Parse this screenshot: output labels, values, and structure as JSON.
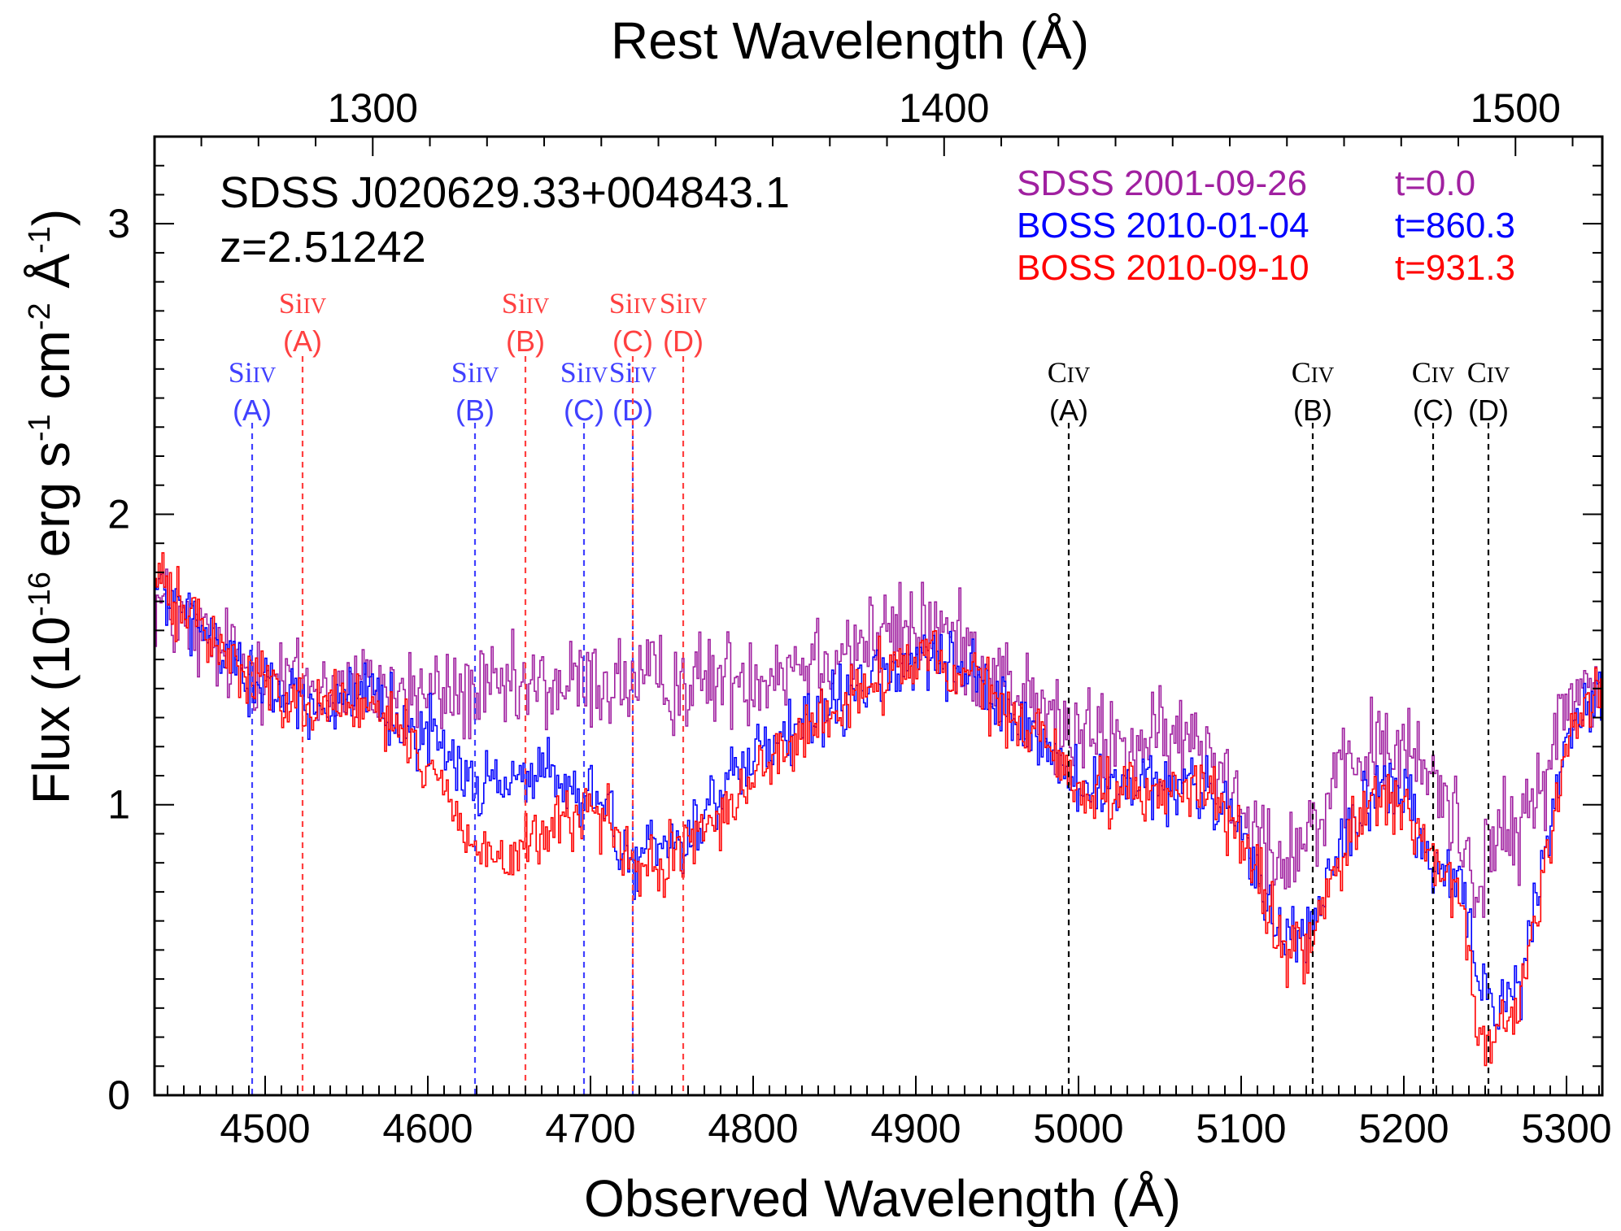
{
  "chart_data": {
    "type": "line",
    "object_name": "SDSS J020629.33+004843.1",
    "redshift_label": "z=2.51242",
    "redshift": 2.51242,
    "xlabel": "Observed Wavelength (Å)",
    "top_xlabel": "Rest Wavelength (Å)",
    "xlim": [
      4432,
      5322
    ],
    "ylim": [
      0,
      3.3
    ],
    "x_ticks": [
      4500,
      4600,
      4700,
      4800,
      4900,
      5000,
      5100,
      5200,
      5300
    ],
    "x_tick_labels": [
      "4500",
      "4600",
      "4700",
      "4800",
      "4900",
      "5000",
      "5100",
      "5200",
      "5300"
    ],
    "y_ticks": [
      0,
      1,
      2,
      3
    ],
    "y_tick_labels": [
      "0",
      "1",
      "2",
      "3"
    ],
    "top_ticks": [
      1300,
      1400,
      1500
    ],
    "top_tick_labels": [
      "1300",
      "1400",
      "1500"
    ],
    "ylabel": {
      "prefix": "Flux (10",
      "exp": "-16",
      "unit1": " erg s",
      "exp1": "-1",
      "unit2": " cm",
      "exp2": "-2",
      "unit3": " Å",
      "exp3": "-1",
      "suffix": ")"
    },
    "legend_placement": "top-right",
    "grid": false,
    "series": [
      {
        "name": "SDSS 2001-09-26",
        "time_label": "t=0.0",
        "color": "#a020a0",
        "noise": 0.12,
        "continuum": [
          [
            4432,
            1.7
          ],
          [
            4470,
            1.52
          ],
          [
            4520,
            1.42
          ],
          [
            4560,
            1.4
          ],
          [
            4600,
            1.38
          ],
          [
            4640,
            1.38
          ],
          [
            4700,
            1.42
          ],
          [
            4760,
            1.42
          ],
          [
            4800,
            1.45
          ],
          [
            4860,
            1.55
          ],
          [
            4910,
            1.62
          ],
          [
            4950,
            1.45
          ],
          [
            4990,
            1.25
          ],
          [
            5030,
            1.2
          ],
          [
            5060,
            1.22
          ],
          [
            5080,
            1.2
          ],
          [
            5100,
            1.02
          ],
          [
            5120,
            0.82
          ],
          [
            5140,
            0.9
          ],
          [
            5160,
            1.05
          ],
          [
            5180,
            1.2
          ],
          [
            5200,
            1.18
          ],
          [
            5220,
            1.08
          ],
          [
            5235,
            0.9
          ],
          [
            5245,
            0.72
          ],
          [
            5255,
            0.9
          ],
          [
            5270,
            0.88
          ],
          [
            5285,
            1.1
          ],
          [
            5300,
            1.35
          ],
          [
            5322,
            1.45
          ]
        ]
      },
      {
        "name": "BOSS 2010-01-04",
        "time_label": "t=860.3",
        "color": "#0000ff",
        "noise": 0.08,
        "continuum": [
          [
            4432,
            1.75
          ],
          [
            4470,
            1.55
          ],
          [
            4500,
            1.4
          ],
          [
            4530,
            1.35
          ],
          [
            4560,
            1.35
          ],
          [
            4590,
            1.28
          ],
          [
            4610,
            1.2
          ],
          [
            4630,
            1.05
          ],
          [
            4650,
            1.1
          ],
          [
            4670,
            1.12
          ],
          [
            4690,
            1.02
          ],
          [
            4700,
            1.02
          ],
          [
            4710,
            1.0
          ],
          [
            4720,
            0.8
          ],
          [
            4740,
            0.85
          ],
          [
            4760,
            0.9
          ],
          [
            4780,
            1.05
          ],
          [
            4800,
            1.15
          ],
          [
            4840,
            1.3
          ],
          [
            4880,
            1.45
          ],
          [
            4910,
            1.5
          ],
          [
            4940,
            1.4
          ],
          [
            4980,
            1.2
          ],
          [
            5000,
            1.05
          ],
          [
            5040,
            1.05
          ],
          [
            5080,
            1.05
          ],
          [
            5100,
            0.9
          ],
          [
            5120,
            0.6
          ],
          [
            5140,
            0.55
          ],
          [
            5160,
            0.85
          ],
          [
            5180,
            1.05
          ],
          [
            5200,
            1.05
          ],
          [
            5215,
            0.8
          ],
          [
            5235,
            0.72
          ],
          [
            5245,
            0.4
          ],
          [
            5255,
            0.3
          ],
          [
            5270,
            0.35
          ],
          [
            5285,
            0.8
          ],
          [
            5300,
            1.25
          ],
          [
            5322,
            1.4
          ]
        ]
      },
      {
        "name": "BOSS 2010-09-10",
        "time_label": "t=931.3",
        "color": "#ff0000",
        "noise": 0.08,
        "continuum": [
          [
            4432,
            1.78
          ],
          [
            4470,
            1.55
          ],
          [
            4500,
            1.4
          ],
          [
            4530,
            1.35
          ],
          [
            4560,
            1.35
          ],
          [
            4590,
            1.2
          ],
          [
            4610,
            1.05
          ],
          [
            4630,
            0.85
          ],
          [
            4650,
            0.8
          ],
          [
            4670,
            0.9
          ],
          [
            4690,
            0.95
          ],
          [
            4700,
            1.0
          ],
          [
            4710,
            0.95
          ],
          [
            4720,
            0.78
          ],
          [
            4740,
            0.78
          ],
          [
            4760,
            0.85
          ],
          [
            4780,
            0.98
          ],
          [
            4800,
            1.1
          ],
          [
            4840,
            1.28
          ],
          [
            4880,
            1.45
          ],
          [
            4910,
            1.5
          ],
          [
            4940,
            1.4
          ],
          [
            4980,
            1.2
          ],
          [
            5000,
            1.05
          ],
          [
            5040,
            1.05
          ],
          [
            5080,
            1.05
          ],
          [
            5100,
            0.88
          ],
          [
            5120,
            0.55
          ],
          [
            5140,
            0.48
          ],
          [
            5160,
            0.8
          ],
          [
            5180,
            1.05
          ],
          [
            5200,
            1.0
          ],
          [
            5215,
            0.78
          ],
          [
            5235,
            0.7
          ],
          [
            5245,
            0.15
          ],
          [
            5255,
            0.22
          ],
          [
            5270,
            0.3
          ],
          [
            5285,
            0.75
          ],
          [
            5300,
            1.25
          ],
          [
            5322,
            1.42
          ]
        ]
      }
    ],
    "markers": [
      {
        "x": 4492,
        "ion": "Si",
        "stage": "IV",
        "label": "(A)",
        "color": "#4040ff",
        "row": "low"
      },
      {
        "x": 4523,
        "ion": "Si",
        "stage": "IV",
        "label": "(A)",
        "color": "#ff4040",
        "row": "high"
      },
      {
        "x": 4629,
        "ion": "Si",
        "stage": "IV",
        "label": "(B)",
        "color": "#4040ff",
        "row": "low"
      },
      {
        "x": 4660,
        "ion": "Si",
        "stage": "IV",
        "label": "(B)",
        "color": "#ff4040",
        "row": "high"
      },
      {
        "x": 4696,
        "ion": "Si",
        "stage": "IV",
        "label": "(C)",
        "color": "#4040ff",
        "row": "low"
      },
      {
        "x": 4726,
        "ion": "Si",
        "stage": "IV",
        "label": "(D)",
        "color": "#4040ff",
        "row": "low"
      },
      {
        "x": 4726,
        "ion": "Si",
        "stage": "IV",
        "label": "(C)",
        "color": "#ff4040",
        "row": "high"
      },
      {
        "x": 4757,
        "ion": "Si",
        "stage": "IV",
        "label": "(D)",
        "color": "#ff4040",
        "row": "high"
      },
      {
        "x": 4994,
        "ion": "C",
        "stage": "IV",
        "label": "(A)",
        "color": "#000000",
        "row": "low"
      },
      {
        "x": 5144,
        "ion": "C",
        "stage": "IV",
        "label": "(B)",
        "color": "#000000",
        "row": "low"
      },
      {
        "x": 5218,
        "ion": "C",
        "stage": "IV",
        "label": "(C)",
        "color": "#000000",
        "row": "low"
      },
      {
        "x": 5252,
        "ion": "C",
        "stage": "IV",
        "label": "(D)",
        "color": "#000000",
        "row": "low"
      }
    ]
  }
}
